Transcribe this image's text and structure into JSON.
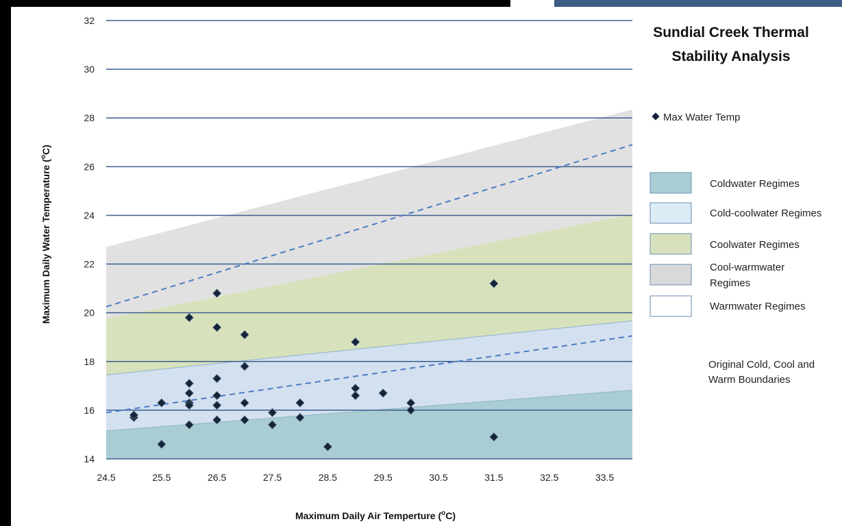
{
  "chart_data": {
    "type": "scatter",
    "title_lines": [
      "Sundial Creek Thermal",
      "Stability Analysis"
    ],
    "xlabel": "Maximum Daily Air Temperture (",
    "xlabel_unit": "o",
    "xlabel_end": "C)",
    "ylabel": "Maximum Daily Water Temperature (",
    "ylabel_unit": "o",
    "ylabel_end": "C)",
    "xlim": [
      24.5,
      34.0
    ],
    "ylim": [
      14,
      32
    ],
    "x_ticks": [
      "24.5",
      "25.5",
      "26.5",
      "27.5",
      "28.5",
      "29.5",
      "30.5",
      "31.5",
      "32.5",
      "33.5"
    ],
    "y_ticks": [
      "14",
      "16",
      "18",
      "20",
      "22",
      "24",
      "26",
      "28",
      "30",
      "32"
    ],
    "grid": "horizontal",
    "series": [
      {
        "name": "Max Water Temp",
        "marker": "diamond",
        "color": "#14253a",
        "points": [
          [
            25.0,
            15.7
          ],
          [
            25.0,
            15.8
          ],
          [
            25.5,
            16.3
          ],
          [
            25.5,
            14.6
          ],
          [
            26.0,
            19.8
          ],
          [
            26.0,
            17.1
          ],
          [
            26.0,
            16.7
          ],
          [
            26.0,
            16.3
          ],
          [
            26.0,
            16.2
          ],
          [
            26.0,
            15.4
          ],
          [
            26.5,
            20.8
          ],
          [
            26.5,
            19.4
          ],
          [
            26.5,
            17.3
          ],
          [
            26.5,
            16.6
          ],
          [
            26.5,
            16.2
          ],
          [
            26.5,
            15.6
          ],
          [
            27.0,
            19.1
          ],
          [
            27.0,
            17.8
          ],
          [
            27.0,
            16.3
          ],
          [
            27.0,
            15.6
          ],
          [
            27.5,
            15.9
          ],
          [
            27.5,
            15.4
          ],
          [
            28.0,
            16.3
          ],
          [
            28.0,
            15.7
          ],
          [
            28.5,
            14.5
          ],
          [
            29.0,
            18.8
          ],
          [
            29.0,
            16.9
          ],
          [
            29.0,
            16.6
          ],
          [
            29.5,
            16.7
          ],
          [
            30.0,
            16.3
          ],
          [
            30.0,
            16.0
          ],
          [
            31.5,
            21.2
          ],
          [
            31.5,
            14.9
          ]
        ]
      }
    ],
    "regimes": [
      {
        "name": "Coldwater Regimes",
        "fill": "#a9cdd3",
        "y_at_xmin": 15.15,
        "y_at_xmax": 16.82,
        "base": 14
      },
      {
        "name": "Cold-coolwater Regimes",
        "fill": "#d3e0ef",
        "y_at_xmin": 17.45,
        "y_at_xmax": 19.67
      },
      {
        "name": "Coolwater Regimes",
        "fill": "#d7e2bd",
        "y_at_xmin": 19.75,
        "y_at_xmax": 24.05
      },
      {
        "name": "Cool-warmwater Regimes",
        "fill": "#e1e1e1",
        "y_at_xmin": 22.7,
        "y_at_xmax": 28.35
      },
      {
        "name": "Warmwater Regimes",
        "fill": "#ffffff"
      }
    ],
    "boundaries": {
      "name": "Original Cold, Cool and Warm Boundaries",
      "style": "dashed",
      "color": "#4a7bc4",
      "lines": [
        {
          "y_at_xmin": 15.9,
          "y_at_xmax": 19.05
        },
        {
          "y_at_xmin": 20.25,
          "y_at_xmax": 26.9
        }
      ]
    },
    "legend": {
      "placement": "right",
      "marker_label": "Max Water Temp",
      "regime_labels": [
        [
          "Coldwater Regimes"
        ],
        [
          "Cold-coolwater Regimes"
        ],
        [
          "Coolwater Regimes"
        ],
        [
          "Cool-warmwater",
          "Regimes"
        ],
        [
          "Warmwater Regimes"
        ]
      ],
      "boundary_label": [
        "Original Cold, Cool and",
        "Warm Boundaries"
      ]
    },
    "gridline_color": "#3b5d8f"
  }
}
